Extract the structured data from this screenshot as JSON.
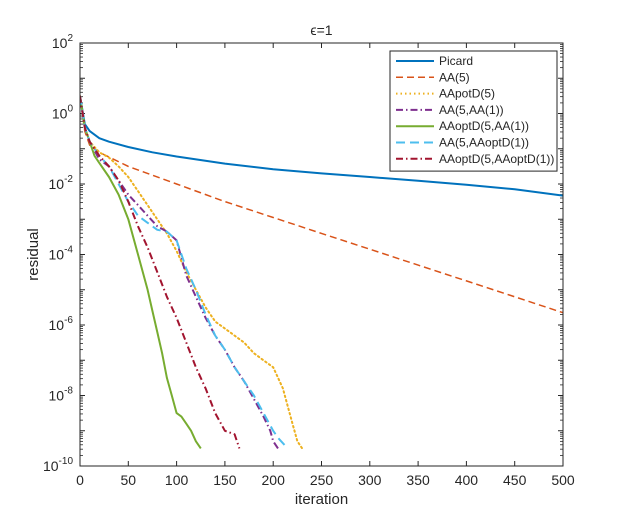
{
  "chart_data": {
    "type": "line",
    "title": "ϵ=1",
    "xlabel": "iteration",
    "ylabel": "residual",
    "xlim": [
      0,
      500
    ],
    "ylim_log10": [
      -10,
      2
    ],
    "yscale": "log",
    "xticks": [
      0,
      50,
      100,
      150,
      200,
      250,
      300,
      350,
      400,
      450,
      500
    ],
    "xtick_labels": [
      "0",
      "50",
      "100",
      "150",
      "200",
      "250",
      "300",
      "350",
      "400",
      "450",
      "500"
    ],
    "yticks_log10": [
      -10,
      -8,
      -6,
      -4,
      -2,
      0,
      2
    ],
    "ytick_base": "10",
    "ytick_exponents": [
      "-10",
      "-8",
      "-6",
      "-4",
      "-2",
      "0",
      "2"
    ],
    "legend_position": "top-right",
    "series": [
      {
        "name": "Picard",
        "color": "#0072BD",
        "dash": "solid",
        "width": 2,
        "points": [
          [
            0,
            0.5
          ],
          [
            5,
            -0.3
          ],
          [
            10,
            -0.5
          ],
          [
            20,
            -0.7
          ],
          [
            30,
            -0.8
          ],
          [
            50,
            -0.95
          ],
          [
            75,
            -1.1
          ],
          [
            100,
            -1.22
          ],
          [
            150,
            -1.42
          ],
          [
            200,
            -1.58
          ],
          [
            250,
            -1.7
          ],
          [
            300,
            -1.8
          ],
          [
            350,
            -1.91
          ],
          [
            400,
            -2.02
          ],
          [
            450,
            -2.15
          ],
          [
            500,
            -2.33
          ]
        ]
      },
      {
        "name": "AA(5)",
        "color": "#D95319",
        "dash": "dashed",
        "width": 1.5,
        "points": [
          [
            0,
            0.5
          ],
          [
            5,
            -0.5
          ],
          [
            10,
            -0.9
          ],
          [
            20,
            -1.1
          ],
          [
            50,
            -1.5
          ],
          [
            100,
            -2.0
          ],
          [
            150,
            -2.5
          ],
          [
            200,
            -2.95
          ],
          [
            250,
            -3.4
          ],
          [
            300,
            -3.85
          ],
          [
            350,
            -4.3
          ],
          [
            400,
            -4.75
          ],
          [
            450,
            -5.2
          ],
          [
            500,
            -5.65
          ]
        ]
      },
      {
        "name": "AApotD(5)",
        "color": "#EDB120",
        "dash": "dotted",
        "width": 2,
        "points": [
          [
            0,
            0.5
          ],
          [
            5,
            -0.4
          ],
          [
            10,
            -0.8
          ],
          [
            20,
            -1.1
          ],
          [
            30,
            -1.25
          ],
          [
            40,
            -1.5
          ],
          [
            50,
            -1.8
          ],
          [
            60,
            -2.2
          ],
          [
            75,
            -2.8
          ],
          [
            90,
            -3.4
          ],
          [
            100,
            -3.9
          ],
          [
            110,
            -4.5
          ],
          [
            120,
            -5.0
          ],
          [
            130,
            -5.5
          ],
          [
            140,
            -5.9
          ],
          [
            150,
            -6.1
          ],
          [
            160,
            -6.3
          ],
          [
            170,
            -6.5
          ],
          [
            180,
            -6.8
          ],
          [
            190,
            -7.0
          ],
          [
            200,
            -7.2
          ],
          [
            210,
            -7.8
          ],
          [
            215,
            -8.3
          ],
          [
            220,
            -8.8
          ],
          [
            225,
            -9.3
          ],
          [
            230,
            -9.5
          ]
        ]
      },
      {
        "name": "AA(5,AA(1))",
        "color": "#7E2F8E",
        "dash": "dashdot",
        "width": 2,
        "points": [
          [
            0,
            0.5
          ],
          [
            5,
            -0.4
          ],
          [
            10,
            -0.8
          ],
          [
            20,
            -1.3
          ],
          [
            30,
            -1.5
          ],
          [
            40,
            -1.9
          ],
          [
            50,
            -2.3
          ],
          [
            60,
            -2.6
          ],
          [
            70,
            -2.9
          ],
          [
            80,
            -3.2
          ],
          [
            90,
            -3.35
          ],
          [
            100,
            -3.6
          ],
          [
            110,
            -4.6
          ],
          [
            120,
            -5.2
          ],
          [
            130,
            -5.8
          ],
          [
            140,
            -6.3
          ],
          [
            150,
            -6.7
          ],
          [
            160,
            -7.2
          ],
          [
            170,
            -7.6
          ],
          [
            180,
            -8.1
          ],
          [
            190,
            -8.6
          ],
          [
            197,
            -9.0
          ],
          [
            200,
            -9.3
          ],
          [
            205,
            -9.5
          ]
        ]
      },
      {
        "name": "AAoptD(5,AA(1))",
        "color": "#77AC30",
        "dash": "solid",
        "width": 2,
        "points": [
          [
            0,
            0.5
          ],
          [
            5,
            -0.4
          ],
          [
            10,
            -0.8
          ],
          [
            15,
            -1.2
          ],
          [
            20,
            -1.4
          ],
          [
            30,
            -1.8
          ],
          [
            40,
            -2.3
          ],
          [
            50,
            -3.0
          ],
          [
            60,
            -4.0
          ],
          [
            70,
            -5.0
          ],
          [
            75,
            -5.6
          ],
          [
            80,
            -6.2
          ],
          [
            85,
            -6.8
          ],
          [
            90,
            -7.5
          ],
          [
            95,
            -8.0
          ],
          [
            100,
            -8.5
          ],
          [
            105,
            -8.6
          ],
          [
            110,
            -8.8
          ],
          [
            115,
            -9.0
          ],
          [
            120,
            -9.3
          ],
          [
            125,
            -9.5
          ]
        ]
      },
      {
        "name": "AA(5,AAoptD(1))",
        "color": "#4DBEEE",
        "dash": "longdash",
        "width": 2,
        "points": [
          [
            0,
            0.5
          ],
          [
            5,
            -0.4
          ],
          [
            10,
            -0.8
          ],
          [
            20,
            -1.2
          ],
          [
            30,
            -1.5
          ],
          [
            40,
            -2.0
          ],
          [
            50,
            -2.5
          ],
          [
            60,
            -2.9
          ],
          [
            70,
            -3.1
          ],
          [
            80,
            -3.3
          ],
          [
            90,
            -3.35
          ],
          [
            100,
            -3.6
          ],
          [
            110,
            -4.4
          ],
          [
            120,
            -5.0
          ],
          [
            130,
            -5.7
          ],
          [
            140,
            -6.3
          ],
          [
            150,
            -6.7
          ],
          [
            160,
            -7.2
          ],
          [
            170,
            -7.6
          ],
          [
            180,
            -8.0
          ],
          [
            190,
            -8.5
          ],
          [
            200,
            -9.0
          ],
          [
            205,
            -9.2
          ],
          [
            215,
            -9.5
          ]
        ]
      },
      {
        "name": "AAoptD(5,AAoptD(1))",
        "color": "#A2142F",
        "dash": "dashdot",
        "width": 2,
        "points": [
          [
            0,
            0.5
          ],
          [
            5,
            -0.4
          ],
          [
            10,
            -0.8
          ],
          [
            20,
            -1.2
          ],
          [
            30,
            -1.5
          ],
          [
            40,
            -1.9
          ],
          [
            50,
            -2.5
          ],
          [
            60,
            -3.2
          ],
          [
            70,
            -3.8
          ],
          [
            80,
            -4.5
          ],
          [
            90,
            -5.2
          ],
          [
            100,
            -5.8
          ],
          [
            110,
            -6.5
          ],
          [
            120,
            -7.2
          ],
          [
            130,
            -7.8
          ],
          [
            140,
            -8.5
          ],
          [
            150,
            -9.0
          ],
          [
            160,
            -9.1
          ],
          [
            165,
            -9.5
          ]
        ]
      }
    ]
  }
}
